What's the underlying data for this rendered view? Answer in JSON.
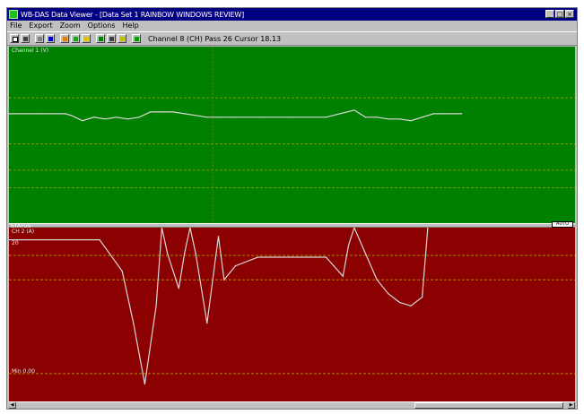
{
  "window": {
    "title": "WB-DAS Data Viewer - [Data Set 1 RAINBOW WINDOWS REVIEW]",
    "controls": {
      "minimize": "_",
      "maximize": "□",
      "close": "×"
    }
  },
  "menu": {
    "items": [
      "File",
      "Export",
      "Zoom",
      "Options",
      "Help"
    ]
  },
  "toolbar": {
    "status": "Channel 8 (CH)   Pass 26   Cursor 18.13"
  },
  "plots": {
    "top": {
      "label": "Channel 1 (V)"
    },
    "bottom": {
      "label": "CH 2 (A)",
      "axis_mark_left": "20",
      "lower_label": "Min 0.00"
    },
    "split": {
      "left_label": "STATUS",
      "right_box": "AUTO"
    }
  },
  "colors": {
    "top_bg": "#008000",
    "bottom_bg": "#8b0000",
    "trace": "#d8d8d8",
    "cursor": "#c05020",
    "grid": "#b0a000"
  },
  "icons": [
    "open-icon",
    "save-icon",
    "print-icon",
    "zoom-icon",
    "pan-icon",
    "marker-icon",
    "grid-icon",
    "axis-icon",
    "scale-icon",
    "channel-icon",
    "record-icon"
  ],
  "chart_data": [
    {
      "type": "line",
      "x": [
        0,
        6,
        10,
        11,
        13,
        15,
        17,
        19,
        21,
        23,
        25,
        27,
        29,
        31,
        33,
        35,
        37,
        40,
        45,
        50,
        56,
        61,
        63,
        65,
        67,
        69,
        71,
        73,
        75,
        77,
        80
      ],
      "y": [
        0.62,
        0.62,
        0.62,
        0.61,
        0.58,
        0.6,
        0.59,
        0.6,
        0.59,
        0.6,
        0.63,
        0.63,
        0.63,
        0.62,
        0.61,
        0.6,
        0.6,
        0.6,
        0.6,
        0.6,
        0.6,
        0.64,
        0.6,
        0.6,
        0.59,
        0.59,
        0.58,
        0.6,
        0.62,
        0.62,
        0.62
      ],
      "ylim": [
        0,
        1
      ],
      "grid": true,
      "cursor_x": 36
    },
    {
      "type": "line",
      "x": [
        0,
        16,
        20,
        22,
        24,
        26,
        27,
        28,
        30,
        31,
        32,
        33,
        35,
        37,
        38,
        40,
        44,
        47,
        50,
        53,
        56,
        59,
        60,
        61,
        63,
        65,
        67,
        69,
        71,
        73,
        74
      ],
      "y": [
        0.93,
        0.93,
        0.75,
        0.45,
        0.1,
        0.55,
        1.0,
        0.85,
        0.65,
        0.85,
        1.0,
        0.85,
        0.45,
        0.95,
        0.7,
        0.78,
        0.83,
        0.83,
        0.83,
        0.83,
        0.83,
        0.72,
        0.9,
        1.0,
        0.85,
        0.7,
        0.62,
        0.57,
        0.55,
        0.6,
        1.0
      ],
      "ylim": [
        0,
        1
      ],
      "grid": true
    }
  ]
}
